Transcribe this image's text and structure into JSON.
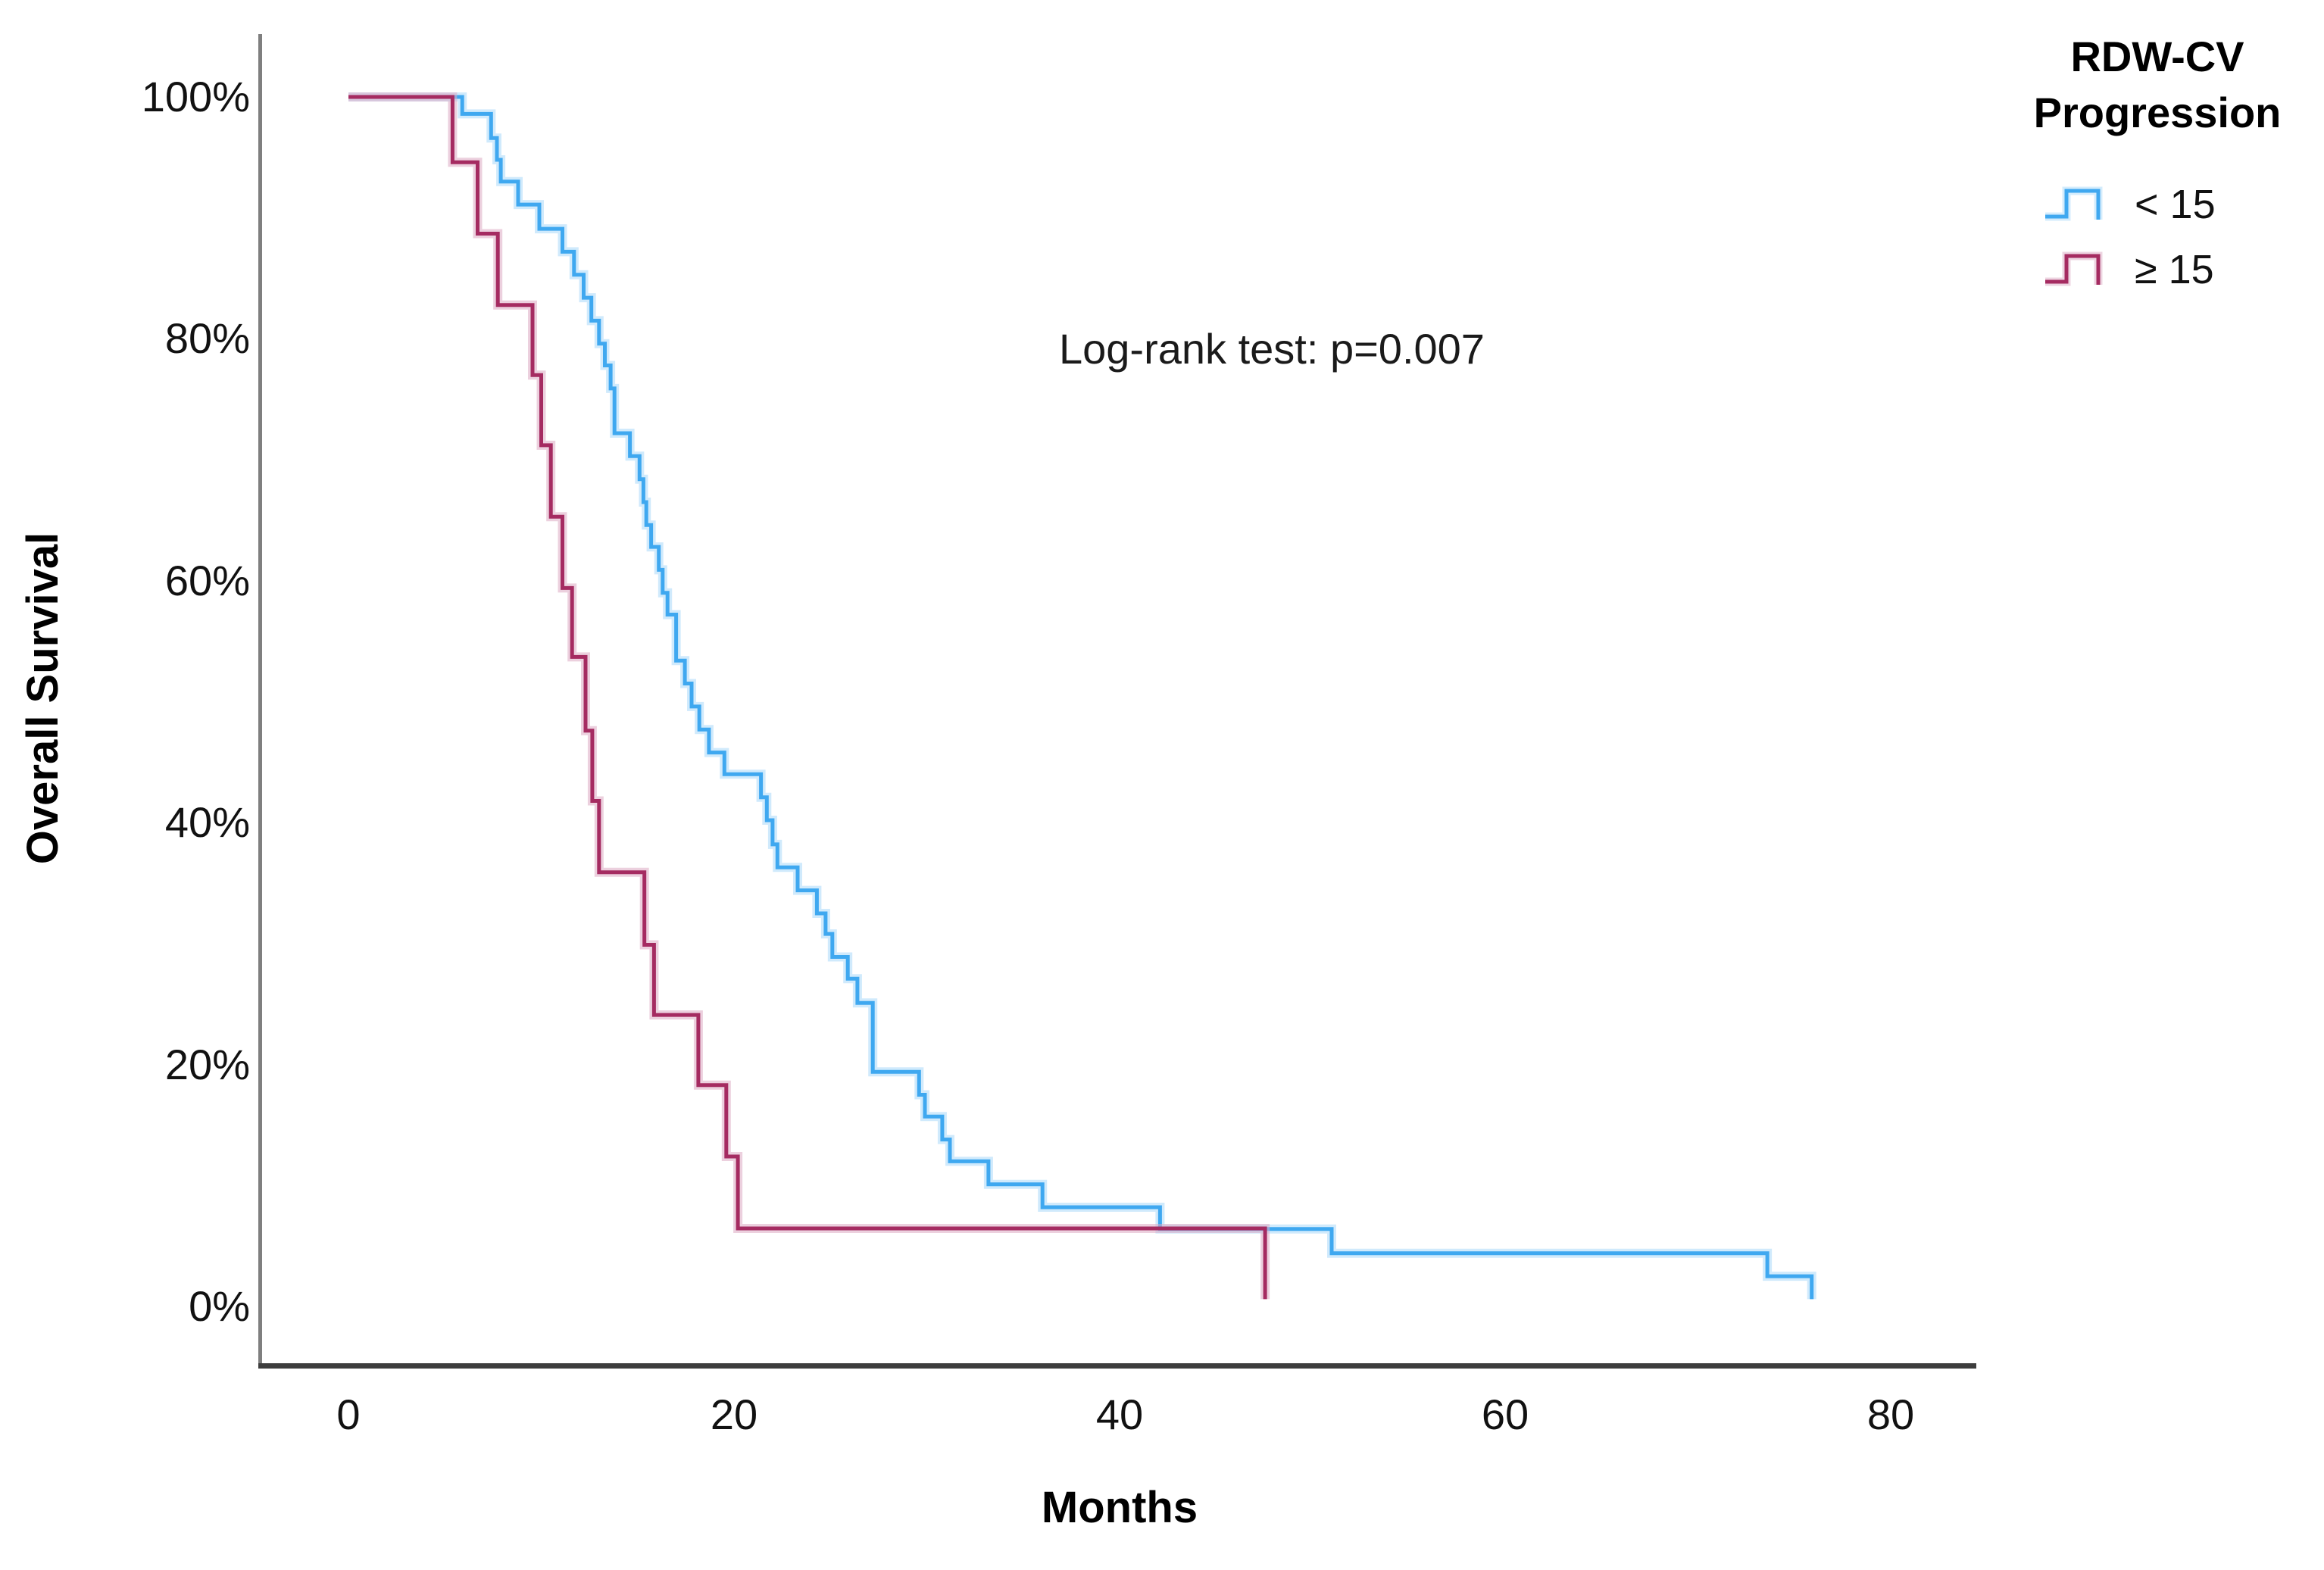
{
  "figure": {
    "annotation": "Log-rank test: p=0.007",
    "x_axis": {
      "title": "Months"
    },
    "y_axis": {
      "title": "Overall Survival"
    },
    "legend": {
      "title": "RDW-CV\nProgression",
      "items": [
        {
          "label": "< 15"
        },
        {
          "label": "≥ 15"
        }
      ]
    }
  },
  "chart_data": {
    "type": "line",
    "subtype": "kaplan-meier-step-survival",
    "title": "",
    "xlabel": "Months",
    "ylabel": "Overall Survival",
    "xlim": [
      -4.6,
      84.4
    ],
    "ylim": [
      -5,
      105
    ],
    "grid": false,
    "legend_position": "top-right-outside",
    "legend_title": "RDW-CV Progression",
    "annotation": "Log-rank test: p=0.007",
    "x_ticks": {
      "values": [
        0,
        20,
        40,
        60,
        80
      ],
      "labels": [
        "0",
        "20",
        "40",
        "60",
        "80"
      ]
    },
    "y_ticks": {
      "values": [
        100,
        80,
        60,
        40,
        20,
        0
      ],
      "labels": [
        "100%",
        "80%",
        "60%",
        "40%",
        "20%",
        "0%"
      ]
    },
    "series": [
      {
        "name": "< 15",
        "color": "#3FA8F0",
        "halo_color": "#A9D9F9",
        "points_month_percent": [
          [
            0,
            100
          ],
          [
            5.9,
            98.6
          ],
          [
            7.4,
            96.6
          ],
          [
            7.7,
            94.8
          ],
          [
            7.9,
            93.0
          ],
          [
            8.8,
            91.1
          ],
          [
            9.9,
            89.1
          ],
          [
            11.1,
            87.2
          ],
          [
            11.7,
            85.3
          ],
          [
            12.2,
            83.4
          ],
          [
            12.6,
            81.5
          ],
          [
            13.0,
            79.6
          ],
          [
            13.3,
            77.8
          ],
          [
            13.6,
            75.9
          ],
          [
            13.8,
            72.2
          ],
          [
            14.6,
            70.3
          ],
          [
            15.1,
            68.4
          ],
          [
            15.3,
            66.5
          ],
          [
            15.45,
            64.6
          ],
          [
            15.7,
            62.8
          ],
          [
            16.1,
            60.9
          ],
          [
            16.3,
            59.0
          ],
          [
            16.55,
            57.2
          ],
          [
            17.0,
            53.4
          ],
          [
            17.45,
            51.5
          ],
          [
            17.8,
            49.6
          ],
          [
            18.2,
            47.7
          ],
          [
            18.7,
            45.8
          ],
          [
            19.5,
            44.0
          ],
          [
            21.4,
            42.1
          ],
          [
            21.7,
            40.2
          ],
          [
            22.0,
            38.2
          ],
          [
            22.25,
            36.3
          ],
          [
            23.3,
            34.4
          ],
          [
            24.3,
            32.5
          ],
          [
            24.75,
            30.8
          ],
          [
            25.1,
            28.9
          ],
          [
            25.9,
            27.1
          ],
          [
            26.4,
            25.1
          ],
          [
            27.2,
            19.4
          ],
          [
            29.6,
            17.5
          ],
          [
            29.9,
            15.7
          ],
          [
            30.8,
            13.8
          ],
          [
            31.2,
            12.0
          ],
          [
            33.2,
            10.1
          ],
          [
            36.0,
            8.2
          ],
          [
            42.1,
            6.4
          ],
          [
            51.0,
            4.4
          ],
          [
            73.6,
            2.5
          ],
          [
            75.9,
            0.6
          ]
        ]
      },
      {
        "name": "≥ 15",
        "color": "#A52B61",
        "halo_color": "#DCA9C3",
        "points_month_percent": [
          [
            0,
            100
          ],
          [
            5.4,
            94.6
          ],
          [
            6.7,
            88.7
          ],
          [
            7.75,
            82.8
          ],
          [
            9.55,
            77.0
          ],
          [
            10.0,
            71.2
          ],
          [
            10.5,
            65.3
          ],
          [
            11.1,
            59.4
          ],
          [
            11.6,
            53.7
          ],
          [
            12.3,
            47.6
          ],
          [
            12.65,
            41.8
          ],
          [
            13.0,
            35.9
          ],
          [
            15.35,
            29.9
          ],
          [
            15.85,
            24.1
          ],
          [
            18.15,
            18.3
          ],
          [
            19.6,
            12.4
          ],
          [
            20.2,
            6.45
          ],
          [
            47.55,
            0.6
          ]
        ]
      }
    ]
  },
  "colors": {
    "background": "#ffffff",
    "axis_left": "#7F7F7F",
    "axis_bottom": "#3D3D3D",
    "text": "#000000"
  }
}
